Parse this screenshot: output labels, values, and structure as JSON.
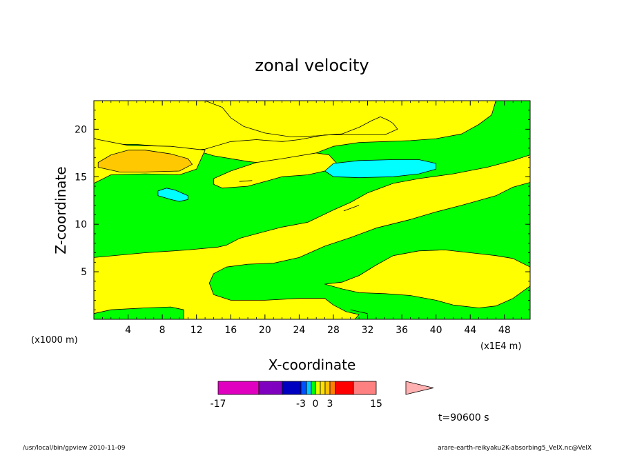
{
  "chart_data": {
    "type": "contour",
    "title": "zonal velocity",
    "xlabel": "X-coordinate",
    "ylabel": "Z-coordinate",
    "x_scale_note": "(x1E4 m)",
    "y_scale_note": "(x1000 m)",
    "xlim": [
      0,
      51
    ],
    "ylim": [
      0,
      23
    ],
    "x_ticks": [
      4,
      8,
      12,
      16,
      20,
      24,
      28,
      32,
      36,
      40,
      44,
      48
    ],
    "y_ticks": [
      5,
      10,
      15,
      20
    ],
    "colorbar": {
      "levels": [
        -17,
        -10,
        -7,
        -3,
        -2,
        -1,
        0,
        1,
        2,
        3,
        5,
        8,
        15
      ],
      "colors": [
        "#e000c0",
        "#8000c0",
        "#0000c0",
        "#0050ff",
        "#00c8ff",
        "#00ff00",
        "#e8ff00",
        "#ffe000",
        "#ffc000",
        "#ff8000",
        "#ff0000",
        "#ff8080",
        "#ffb0b0"
      ],
      "tick_labels": [
        "-17",
        "-3",
        "0",
        "3",
        "15"
      ],
      "tick_values": [
        -17,
        -3,
        0,
        3,
        15
      ]
    },
    "annotation": "t=90600 s",
    "regions": [
      {
        "color": "#00ff00",
        "points": [
          [
            0,
            0.6
          ],
          [
            2,
            1.0
          ],
          [
            6,
            1.2
          ],
          [
            9,
            1.3
          ],
          [
            10.5,
            1.0
          ],
          [
            10.5,
            0
          ],
          [
            0,
            0
          ]
        ]
      },
      {
        "color": "#00ff00",
        "points": [
          [
            0,
            6.5
          ],
          [
            6,
            7.0
          ],
          [
            11,
            7.3
          ],
          [
            14.5,
            7.6
          ],
          [
            15.5,
            7.8
          ],
          [
            17,
            8.5
          ],
          [
            19,
            9.0
          ],
          [
            22,
            9.7
          ],
          [
            25,
            10.2
          ],
          [
            28,
            11.5
          ],
          [
            30,
            12.3
          ],
          [
            32,
            13.3
          ],
          [
            35,
            14.3
          ],
          [
            38,
            14.8
          ],
          [
            42,
            15.3
          ],
          [
            46,
            16.0
          ],
          [
            49,
            16.7
          ],
          [
            51,
            17.3
          ],
          [
            51,
            14.4
          ],
          [
            49,
            13.9
          ],
          [
            47,
            13.0
          ],
          [
            45,
            12.5
          ],
          [
            43,
            12.0
          ],
          [
            40,
            11.3
          ],
          [
            37,
            10.5
          ],
          [
            33,
            9.6
          ],
          [
            30,
            8.6
          ],
          [
            27,
            7.7
          ],
          [
            24,
            6.5
          ],
          [
            21,
            5.9
          ],
          [
            18,
            5.8
          ],
          [
            15.5,
            5.5
          ],
          [
            14,
            4.8
          ],
          [
            13.5,
            3.8
          ],
          [
            14,
            2.6
          ],
          [
            16,
            2.0
          ],
          [
            20,
            2.0
          ],
          [
            24,
            2.2
          ],
          [
            27,
            2.2
          ],
          [
            28,
            1.5
          ],
          [
            29.5,
            0.8
          ],
          [
            31,
            0.5
          ],
          [
            30.5,
            0
          ],
          [
            51,
            0
          ],
          [
            51,
            23
          ],
          [
            47,
            23
          ],
          [
            46.5,
            21.5
          ],
          [
            45,
            20.5
          ],
          [
            43,
            19.5
          ],
          [
            40,
            19.0
          ],
          [
            37,
            18.8
          ],
          [
            34,
            18.7
          ],
          [
            31,
            18.6
          ],
          [
            28,
            18.2
          ],
          [
            26,
            17.5
          ],
          [
            24,
            16.6
          ],
          [
            21,
            16.3
          ],
          [
            18,
            16.6
          ],
          [
            14,
            17.2
          ],
          [
            12.5,
            17.6
          ],
          [
            11,
            18.1
          ],
          [
            9,
            18.5
          ],
          [
            6,
            18.7
          ],
          [
            2,
            18.6
          ],
          [
            0,
            18.4
          ]
        ]
      },
      {
        "color": "#ffff00",
        "points": [
          [
            13,
            23
          ],
          [
            15,
            22.3
          ],
          [
            16,
            21.2
          ],
          [
            17.5,
            20.3
          ],
          [
            20,
            19.6
          ],
          [
            23,
            19.2
          ],
          [
            26,
            19.3
          ],
          [
            29,
            19.5
          ],
          [
            31,
            20.2
          ],
          [
            32.5,
            20.9
          ],
          [
            33.5,
            21.3
          ],
          [
            34.5,
            20.9
          ],
          [
            35,
            20.6
          ],
          [
            35.5,
            20.0
          ],
          [
            34,
            19.4
          ],
          [
            31,
            19.4
          ],
          [
            27,
            19.4
          ],
          [
            24,
            18.9
          ],
          [
            22,
            18.7
          ],
          [
            19,
            18.9
          ],
          [
            16,
            18.7
          ],
          [
            13,
            17.9
          ],
          [
            11.5,
            17.8
          ],
          [
            9,
            18.1
          ],
          [
            5,
            18.4
          ],
          [
            2,
            18.4
          ],
          [
            0,
            18.5
          ],
          [
            0,
            23
          ]
        ]
      },
      {
        "color": "#ffff00",
        "points": [
          [
            13,
            17.8
          ],
          [
            12,
            15.8
          ],
          [
            10,
            15.2
          ],
          [
            6,
            15.3
          ],
          [
            2,
            15.2
          ],
          [
            0,
            14.3
          ],
          [
            0,
            15
          ],
          [
            0,
            19
          ],
          [
            4,
            18.3
          ],
          [
            9,
            18.2
          ],
          [
            13,
            17.8
          ]
        ]
      },
      {
        "color": "#ffff00",
        "points": [
          [
            27.5,
            17.3
          ],
          [
            28.5,
            16.3
          ],
          [
            27.5,
            15.7
          ],
          [
            25,
            15.2
          ],
          [
            22,
            15.0
          ],
          [
            20,
            14.5
          ],
          [
            18,
            14.0
          ],
          [
            15,
            13.8
          ],
          [
            14,
            14.2
          ],
          [
            14,
            14.8
          ],
          [
            16,
            15.6
          ],
          [
            19,
            16.5
          ],
          [
            22,
            16.9
          ],
          [
            26,
            17.5
          ]
        ]
      },
      {
        "color": "#ffff00",
        "points": [
          [
            27,
            3.7
          ],
          [
            29,
            3.2
          ],
          [
            31,
            2.8
          ],
          [
            34,
            2.7
          ],
          [
            37,
            2.5
          ],
          [
            40,
            2.0
          ],
          [
            42,
            1.5
          ],
          [
            45,
            1.2
          ],
          [
            47,
            1.4
          ],
          [
            49,
            2.2
          ],
          [
            51,
            3.5
          ],
          [
            51,
            5.5
          ],
          [
            49,
            6.4
          ],
          [
            47,
            6.7
          ],
          [
            45,
            6.9
          ],
          [
            43,
            7.1
          ],
          [
            41,
            7.3
          ],
          [
            38,
            7.2
          ],
          [
            35,
            6.7
          ],
          [
            33,
            5.7
          ],
          [
            31,
            4.6
          ],
          [
            29,
            3.9
          ]
        ]
      },
      {
        "color": "#ffc800",
        "points": [
          [
            0.5,
            16.5
          ],
          [
            2,
            17.3
          ],
          [
            4,
            17.8
          ],
          [
            6,
            17.8
          ],
          [
            9,
            17.4
          ],
          [
            11,
            16.9
          ],
          [
            11.5,
            16.3
          ],
          [
            10,
            15.6
          ],
          [
            6,
            15.5
          ],
          [
            3,
            15.5
          ],
          [
            0.5,
            16.0
          ]
        ]
      },
      {
        "color": "#00ffff",
        "points": [
          [
            27,
            15.6
          ],
          [
            28,
            16.4
          ],
          [
            31,
            16.7
          ],
          [
            35,
            16.8
          ],
          [
            38,
            16.8
          ],
          [
            40,
            16.4
          ],
          [
            40,
            15.8
          ],
          [
            38,
            15.3
          ],
          [
            35,
            15.0
          ],
          [
            31,
            14.9
          ],
          [
            28,
            15.0
          ]
        ]
      },
      {
        "color": "#00ffff",
        "points": [
          [
            7.5,
            13.5
          ],
          [
            8.5,
            13.8
          ],
          [
            9.5,
            13.6
          ],
          [
            11,
            13.0
          ],
          [
            11,
            12.6
          ],
          [
            10,
            12.4
          ],
          [
            9,
            12.6
          ],
          [
            7.5,
            13.0
          ]
        ]
      }
    ],
    "lines": [
      {
        "points": [
          [
            17,
            14.5
          ],
          [
            18.5,
            14.6
          ]
        ]
      },
      {
        "points": [
          [
            29.2,
            11.4
          ],
          [
            31,
            12.0
          ]
        ]
      },
      {
        "points": [
          [
            30,
            1.0
          ],
          [
            31,
            0.8
          ],
          [
            32,
            0.6
          ]
        ]
      }
    ]
  },
  "footer": {
    "left": "/usr/local/bin/gpview  2010-11-09",
    "right": "arare-earth-reikyaku2K-absorbing5_VelX.nc@VelX"
  }
}
